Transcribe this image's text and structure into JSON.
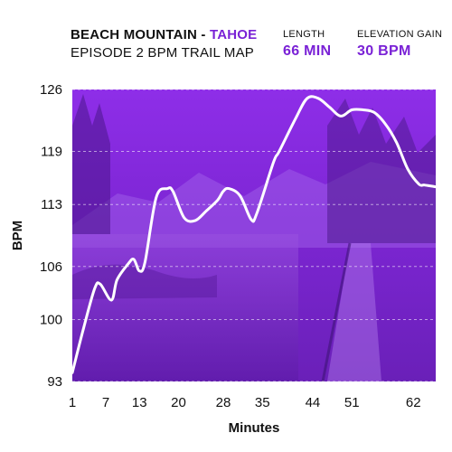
{
  "header": {
    "title_main": "BEACH MOUNTAIN - ",
    "title_accent": "TAHOE",
    "subtitle": "EPISODE 2 BPM TRAIL MAP",
    "length_label": "LENGTH",
    "length_value": "66 MIN",
    "elevation_label": "ELEVATION GAIN",
    "elevation_value": "30 BPM"
  },
  "colors": {
    "accent": "#7a22d6",
    "plot_bg": "#8a2be2",
    "line": "#ffffff"
  },
  "chart_data": {
    "type": "line",
    "xlabel": "Minutes",
    "ylabel": "BPM",
    "xlim": [
      1,
      66
    ],
    "ylim": [
      93,
      126
    ],
    "x_ticks": [
      "1",
      "7",
      "13",
      "20",
      "28",
      "35",
      "44",
      "51",
      "62"
    ],
    "x_tick_values": [
      1,
      7,
      13,
      20,
      28,
      35,
      44,
      51,
      62
    ],
    "y_ticks": [
      "126",
      "119",
      "113",
      "106",
      "100",
      "93"
    ],
    "y_tick_values": [
      126,
      119,
      113,
      106,
      100,
      93
    ],
    "grid": "horizontal dashed",
    "series": [
      {
        "x": [
          1,
          3,
          5,
          6,
          8,
          9,
          11,
          12,
          13,
          14,
          16,
          18,
          19,
          21,
          23,
          25,
          27,
          28,
          29,
          31,
          33,
          34,
          37,
          38,
          41,
          43,
          45,
          47,
          49,
          51,
          53,
          55,
          57,
          59,
          61,
          63,
          64,
          66
        ],
        "y": [
          94,
          99,
          103.5,
          104,
          102.2,
          104.5,
          106.3,
          106.8,
          105.5,
          106.5,
          113.8,
          114.8,
          114.5,
          111.5,
          111.2,
          112.3,
          113.5,
          114.5,
          114.8,
          114,
          111.3,
          112,
          117.8,
          119,
          122.8,
          125,
          125,
          124,
          123,
          123.7,
          123.7,
          123.4,
          122.1,
          120,
          117,
          115.3,
          115.2,
          115
        ]
      }
    ]
  }
}
